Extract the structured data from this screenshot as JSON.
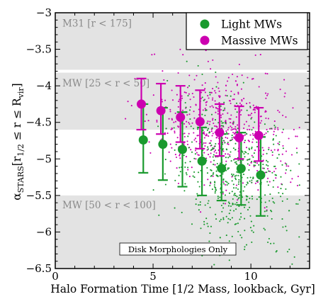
{
  "chart_data": {
    "type": "scatter",
    "xlabel": "Halo Formation Time [1/2 Mass, lookback, Gyr]",
    "ylabel": {
      "alpha": "α",
      "stars_sub": "STARS",
      "bracket_open": "[r",
      "half_sub": "1/2",
      "mid": " ≤ r ≤ R",
      "vir_sub": "vir",
      "bracket_close": "]"
    },
    "xlim": [
      0,
      13
    ],
    "ylim": [
      -6.5,
      -3
    ],
    "x_ticks": [
      0,
      5,
      10
    ],
    "y_ticks": [
      -3,
      -3.5,
      -4,
      -4.5,
      -5,
      -5.5,
      -6,
      -6.5
    ],
    "y_tick_labels": [
      "−3",
      "−3.5",
      "−4",
      "−4.5",
      "−5",
      "−5.5",
      "−6",
      "−6.5"
    ],
    "bands": [
      {
        "label": "M31 [r < 175]",
        "y_range": [
          -3.78,
          -3.0
        ],
        "color": "#e3e3e3"
      },
      {
        "label": "MW [25 < r < 50]",
        "y_range": [
          -4.6,
          -3.82
        ],
        "color": "#e3e3e3"
      },
      {
        "label": "MW [50 < r < 100]",
        "y_range": [
          -6.5,
          -5.5
        ],
        "color": "#e3e3e3"
      }
    ],
    "legend": {
      "position": "top-right",
      "entries": [
        "Light MWs",
        "Massive MWs"
      ]
    },
    "annotation": "Disk Morphologies Only",
    "series": [
      {
        "name": "Light MWs",
        "color": "#1a9a2e",
        "x": [
          4.5,
          5.5,
          6.5,
          7.5,
          8.5,
          9.5,
          10.5
        ],
        "y": [
          -4.74,
          -4.8,
          -4.87,
          -5.03,
          -5.13,
          -5.13,
          -5.22
        ],
        "y_low": [
          -5.19,
          -5.29,
          -5.38,
          -5.5,
          -5.57,
          -5.63,
          -5.78
        ],
        "y_high": [
          -4.25,
          -4.3,
          -4.36,
          -4.57,
          -4.66,
          -4.64,
          -4.7
        ]
      },
      {
        "name": "Massive MWs",
        "color": "#cc00b0",
        "x": [
          4.4,
          5.4,
          6.4,
          7.4,
          8.4,
          9.4,
          10.4
        ],
        "y": [
          -4.25,
          -4.34,
          -4.43,
          -4.49,
          -4.64,
          -4.71,
          -4.68
        ],
        "y_low": [
          -4.6,
          -4.66,
          -4.77,
          -4.86,
          -4.96,
          -5.0,
          -5.03
        ],
        "y_high": [
          -3.9,
          -3.97,
          -4.0,
          -4.06,
          -4.25,
          -4.28,
          -4.3
        ]
      }
    ]
  }
}
